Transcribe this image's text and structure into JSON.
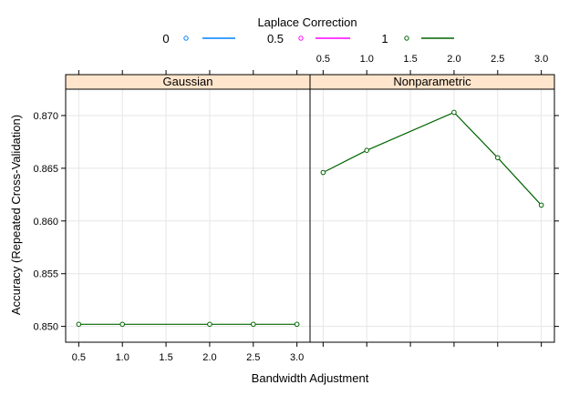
{
  "chart_data": {
    "type": "line",
    "legend_title": "Laplace Correction",
    "legend": [
      {
        "label": "0",
        "color": "#0080ff"
      },
      {
        "label": "0.5",
        "color": "#ff00ff"
      },
      {
        "label": "1",
        "color": "#006400"
      }
    ],
    "xlabel": "Bandwidth Adjustment",
    "ylabel": "Accuracy (Repeated Cross-Validation)",
    "xlim": [
      0.35,
      3.15
    ],
    "ylim": [
      0.8485,
      0.8725
    ],
    "xticks": [
      0.5,
      1.0,
      1.5,
      2.0,
      2.5,
      3.0
    ],
    "xtick_labels": [
      "0.5",
      "1.0",
      "1.5",
      "2.0",
      "2.5",
      "3.0"
    ],
    "yticks": [
      0.85,
      0.855,
      0.86,
      0.865,
      0.87
    ],
    "ytick_labels": [
      "0.850",
      "0.855",
      "0.860",
      "0.865",
      "0.870"
    ],
    "grid": true,
    "legend_position": "top",
    "panels": [
      {
        "title": "Gaussian",
        "series": [
          {
            "legend": "1",
            "color": "#006400",
            "x": [
              0.5,
              1.0,
              2.0,
              2.5,
              3.0
            ],
            "y": [
              0.8502,
              0.8502,
              0.8502,
              0.8502,
              0.8502
            ]
          }
        ]
      },
      {
        "title": "Nonparametric",
        "series": [
          {
            "legend": "1",
            "color": "#006400",
            "x": [
              0.5,
              1.0,
              2.0,
              2.5,
              3.0
            ],
            "y": [
              0.8646,
              0.8667,
              0.8703,
              0.866,
              0.8615
            ]
          }
        ]
      }
    ]
  }
}
